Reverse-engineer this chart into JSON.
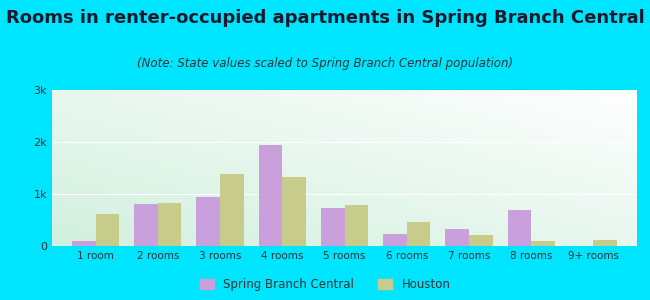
{
  "categories": [
    "1 room",
    "2 rooms",
    "3 rooms",
    "4 rooms",
    "5 rooms",
    "6 rooms",
    "7 rooms",
    "8 rooms",
    "9+ rooms"
  ],
  "spring_branch": [
    100,
    800,
    950,
    1950,
    730,
    230,
    330,
    700,
    0
  ],
  "houston": [
    620,
    820,
    1380,
    1330,
    780,
    470,
    220,
    100,
    120
  ],
  "spring_branch_color": "#c9a0dc",
  "houston_color": "#c8cc8a",
  "title": "Rooms in renter-occupied apartments in Spring Branch Central",
  "subtitle": "(Note: State values scaled to Spring Branch Central population)",
  "ylim": [
    0,
    3000
  ],
  "yticks": [
    0,
    1000,
    2000,
    3000
  ],
  "ytick_labels": [
    "0",
    "1k",
    "2k",
    "3k"
  ],
  "bg_outer": "#00e5ff",
  "legend_spring_branch": "Spring Branch Central",
  "legend_houston": "Houston",
  "title_fontsize": 13,
  "subtitle_fontsize": 8.5,
  "bar_width": 0.38
}
